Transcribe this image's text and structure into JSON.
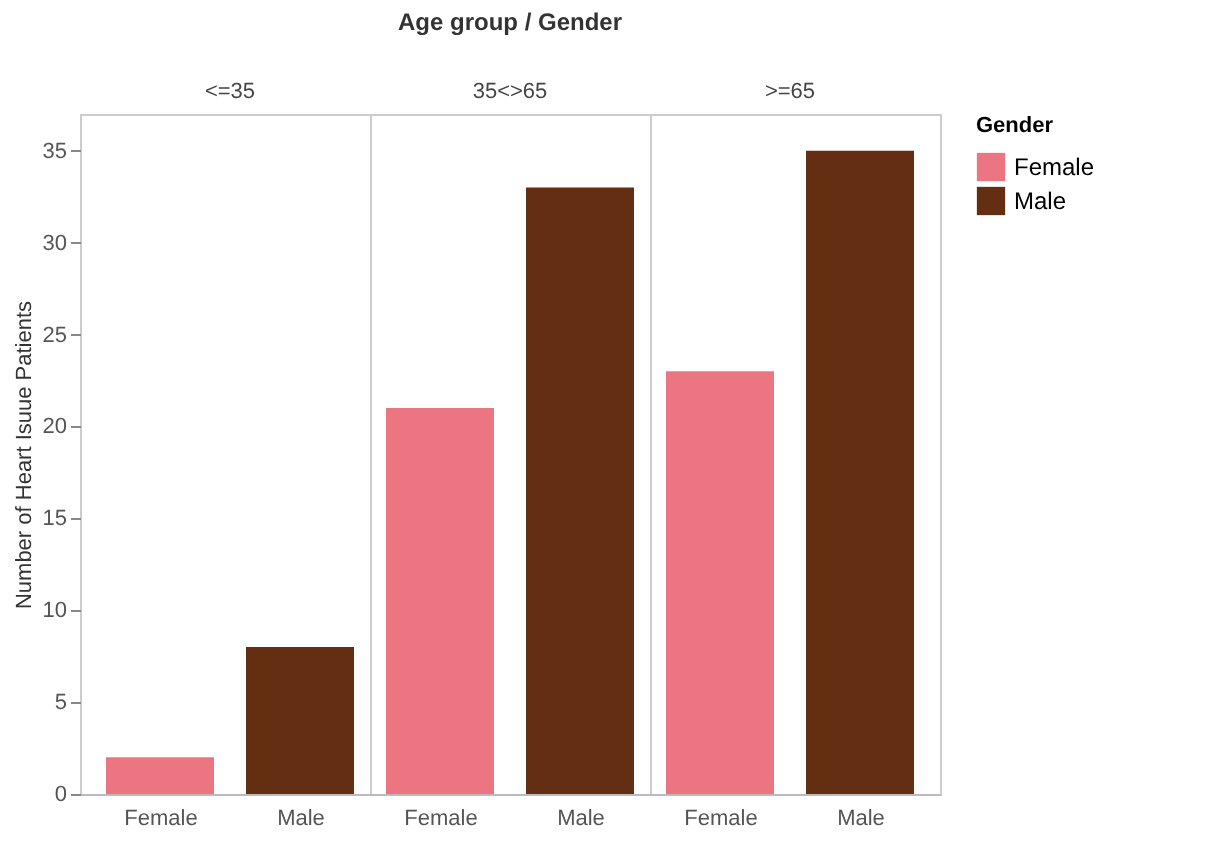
{
  "chart_data": {
    "type": "bar",
    "xlabel": "Age group / Gender",
    "ylabel": "Number of Heart Isuue Patients",
    "categories": [
      "<=35",
      "35<>65",
      ">=65"
    ],
    "series": [
      {
        "name": "Female",
        "color": "#eb7682",
        "values": [
          2,
          21,
          23
        ]
      },
      {
        "name": "Male",
        "color": "#632e12",
        "values": [
          8,
          33,
          35
        ]
      }
    ],
    "ylim": [
      0,
      37
    ],
    "yticks": [
      0,
      5,
      10,
      15,
      20,
      25,
      30,
      35
    ],
    "grid": "x",
    "legend": "right",
    "legend_title": "Gender"
  }
}
